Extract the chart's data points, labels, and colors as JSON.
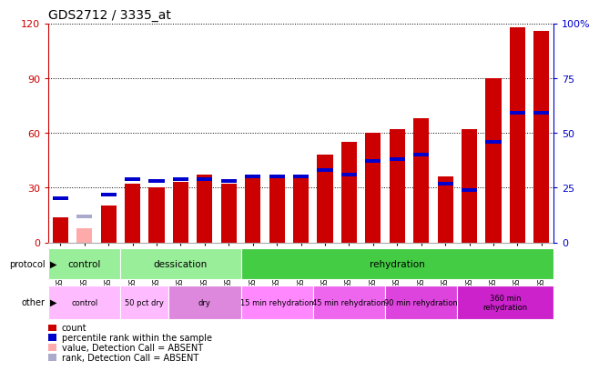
{
  "title": "GDS2712 / 3335_at",
  "samples": [
    "GSM21640",
    "GSM21641",
    "GSM21642",
    "GSM21643",
    "GSM21644",
    "GSM21645",
    "GSM21646",
    "GSM21647",
    "GSM21648",
    "GSM21649",
    "GSM21650",
    "GSM21651",
    "GSM21652",
    "GSM21653",
    "GSM21654",
    "GSM21655",
    "GSM21656",
    "GSM21657",
    "GSM21658",
    "GSM21659",
    "GSM21660"
  ],
  "count_values": [
    14,
    8,
    20,
    32,
    30,
    33,
    37,
    32,
    35,
    35,
    37,
    48,
    55,
    60,
    62,
    68,
    36,
    62,
    90,
    118,
    116
  ],
  "rank_values": [
    20,
    12,
    22,
    29,
    28,
    29,
    29,
    28,
    30,
    30,
    30,
    33,
    31,
    37,
    38,
    40,
    27,
    24,
    46,
    59,
    59
  ],
  "absent_count": [
    false,
    true,
    false,
    false,
    false,
    false,
    false,
    false,
    false,
    false,
    false,
    false,
    false,
    false,
    false,
    false,
    false,
    false,
    false,
    false,
    false
  ],
  "absent_rank": [
    false,
    true,
    false,
    false,
    false,
    false,
    false,
    false,
    false,
    false,
    false,
    false,
    false,
    false,
    false,
    false,
    false,
    false,
    false,
    false,
    false
  ],
  "count_color": "#cc0000",
  "rank_color": "#0000cc",
  "absent_count_color": "#ffaaaa",
  "absent_rank_color": "#aaaacc",
  "ylim_left": [
    0,
    120
  ],
  "ylim_right": [
    0,
    100
  ],
  "yticks_left": [
    0,
    30,
    60,
    90,
    120
  ],
  "yticks_right": [
    0,
    25,
    50,
    75,
    100
  ],
  "ytick_labels_right": [
    "0",
    "25",
    "50",
    "75",
    "100%"
  ],
  "background_color": "#ffffff",
  "title_fontsize": 10,
  "protocol_row": {
    "groups": [
      {
        "label": "control",
        "start": 0,
        "end": 2,
        "color": "#99ee99"
      },
      {
        "label": "dessication",
        "start": 3,
        "end": 7,
        "color": "#99ee99"
      },
      {
        "label": "rehydration",
        "start": 8,
        "end": 20,
        "color": "#44cc44"
      }
    ]
  },
  "other_row": {
    "groups": [
      {
        "label": "control",
        "start": 0,
        "end": 2,
        "color": "#ffbbff"
      },
      {
        "label": "50 pct dry",
        "start": 3,
        "end": 4,
        "color": "#ffbbff"
      },
      {
        "label": "dry",
        "start": 5,
        "end": 7,
        "color": "#dd88dd"
      },
      {
        "label": "15 min rehydration",
        "start": 8,
        "end": 10,
        "color": "#ff88ff"
      },
      {
        "label": "45 min rehydration",
        "start": 11,
        "end": 13,
        "color": "#ee66ee"
      },
      {
        "label": "90 min rehydration",
        "start": 14,
        "end": 16,
        "color": "#dd44dd"
      },
      {
        "label": "360 min\nrehydration",
        "start": 17,
        "end": 20,
        "color": "#cc22cc"
      }
    ]
  },
  "legend_items": [
    {
      "label": "count",
      "color": "#cc0000"
    },
    {
      "label": "percentile rank within the sample",
      "color": "#0000cc"
    },
    {
      "label": "value, Detection Call = ABSENT",
      "color": "#ffaaaa"
    },
    {
      "label": "rank, Detection Call = ABSENT",
      "color": "#aaaacc"
    }
  ]
}
